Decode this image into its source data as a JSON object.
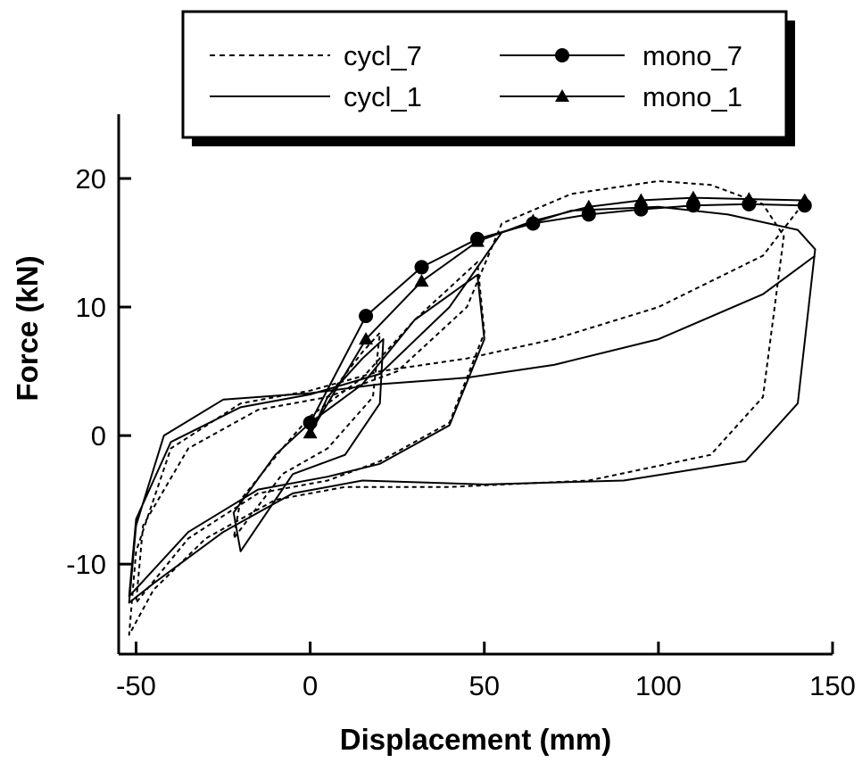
{
  "chart_data": {
    "type": "line",
    "xlabel": "Displacement (mm)",
    "ylabel": "Force (kN)",
    "xlim": [
      -55,
      150
    ],
    "ylim": [
      -17,
      25
    ],
    "xticks": [
      -50,
      0,
      50,
      100,
      150
    ],
    "yticks": [
      -10,
      0,
      10,
      20
    ],
    "xtick_labels": [
      "-50",
      "0",
      "50",
      "100",
      "150"
    ],
    "ytick_labels": [
      "-10",
      "0",
      "10",
      "20"
    ],
    "grid": false,
    "legend_position": "top",
    "legend": [
      {
        "label": "cycl_7",
        "style": "dashed",
        "marker": "none"
      },
      {
        "label": "mono_7",
        "style": "solid",
        "marker": "circle"
      },
      {
        "label": "cycl_1",
        "style": "solid",
        "marker": "none"
      },
      {
        "label": "mono_1",
        "style": "solid",
        "marker": "triangle"
      }
    ],
    "series": [
      {
        "name": "mono_7",
        "style": "solid",
        "marker": "circle",
        "x": [
          0,
          16,
          32,
          48,
          64,
          80,
          95,
          110,
          126,
          142
        ],
        "y": [
          1.0,
          9.3,
          13.1,
          15.3,
          16.5,
          17.2,
          17.6,
          17.9,
          18.0,
          17.9
        ]
      },
      {
        "name": "mono_1",
        "style": "solid",
        "marker": "triangle",
        "x": [
          0,
          16,
          32,
          48,
          64,
          80,
          95,
          110,
          126,
          142
        ],
        "y": [
          0.2,
          7.5,
          12.0,
          15.1,
          16.7,
          17.8,
          18.3,
          18.5,
          18.4,
          18.3
        ]
      },
      {
        "name": "cycl_7",
        "style": "dashed",
        "marker": "none",
        "x": [
          0,
          5,
          15,
          20,
          18,
          5,
          -8,
          -22,
          -20,
          -8,
          0,
          15,
          30,
          48,
          50,
          40,
          20,
          5,
          -15,
          -35,
          -50,
          -48,
          -35,
          -15,
          5,
          25,
          45,
          55,
          75,
          100,
          115,
          130,
          136,
          130,
          115,
          80,
          40,
          10,
          -10,
          -30,
          -45,
          -52,
          -50,
          -40,
          -20,
          0,
          20,
          45,
          70,
          100,
          130,
          140
        ],
        "y": [
          0,
          3,
          6.5,
          8,
          3,
          -1,
          -3,
          -8,
          -5,
          -1,
          1.5,
          4.5,
          9,
          13.5,
          8,
          1,
          -2,
          -3.5,
          -4.5,
          -8,
          -13,
          -7,
          -1,
          2,
          3,
          5,
          10,
          16.5,
          18.8,
          19.8,
          19.5,
          18,
          15.5,
          3,
          -1.5,
          -3.5,
          -4,
          -4,
          -5,
          -8,
          -12,
          -15.5,
          -9,
          -1,
          2.5,
          3.5,
          5,
          6,
          7.5,
          10,
          14,
          17.5
        ]
      },
      {
        "name": "cycl_1",
        "style": "solid",
        "marker": "none",
        "x": [
          0,
          5,
          15,
          21,
          20,
          10,
          -5,
          -20,
          -22,
          -10,
          0,
          15,
          30,
          48,
          50,
          40,
          20,
          5,
          -15,
          -35,
          -52,
          -50,
          -40,
          -20,
          0,
          20,
          40,
          55,
          75,
          100,
          120,
          140,
          145,
          140,
          125,
          90,
          50,
          15,
          -5,
          -25,
          -45,
          -52,
          -50,
          -42,
          -25,
          0,
          20,
          45,
          70,
          100,
          130,
          145
        ],
        "y": [
          0,
          3,
          6,
          7.5,
          2.5,
          -1.5,
          -3,
          -9,
          -6,
          -1.5,
          1,
          4,
          9,
          12.5,
          7.5,
          0.8,
          -2.2,
          -3.2,
          -4.2,
          -7.5,
          -12.5,
          -6.5,
          -0.5,
          2.2,
          3.2,
          4.8,
          10,
          15.8,
          17.5,
          17.8,
          17.2,
          16,
          14.5,
          2.5,
          -2,
          -3.5,
          -3.8,
          -3.5,
          -4.5,
          -7.5,
          -11.5,
          -13,
          -7,
          0,
          2.8,
          3.3,
          4,
          4.5,
          5.5,
          7.5,
          11,
          14
        ]
      }
    ]
  }
}
